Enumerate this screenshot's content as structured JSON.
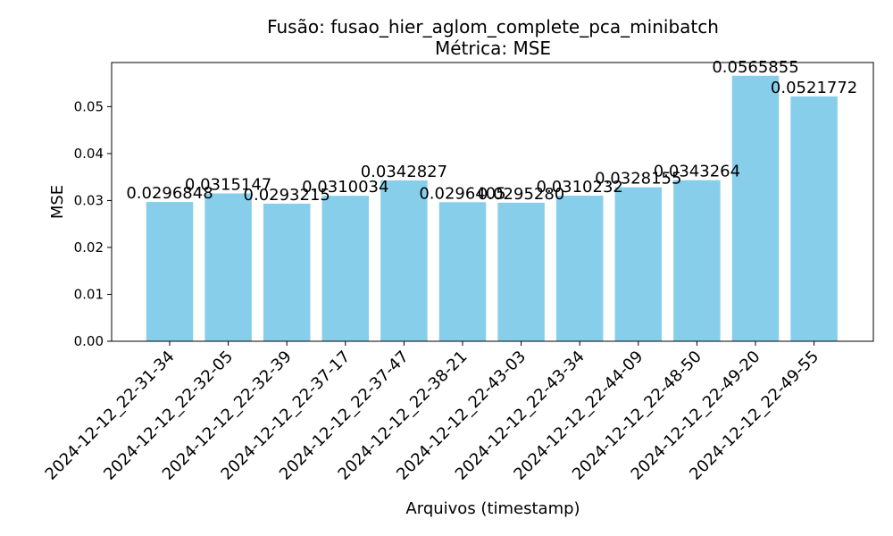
{
  "chart_data": {
    "type": "bar",
    "title_line1": "Fusão: fusao_hier_aglom_complete_pca_minibatch",
    "title_line2": "Métrica: MSE",
    "xlabel": "Arquivos (timestamp)",
    "ylabel": "MSE",
    "categories": [
      "2024-12-12_22-31-34",
      "2024-12-12_22-32-05",
      "2024-12-12_22-32-39",
      "2024-12-12_22-37-17",
      "2024-12-12_22-37-47",
      "2024-12-12_22-38-21",
      "2024-12-12_22-43-03",
      "2024-12-12_22-43-34",
      "2024-12-12_22-44-09",
      "2024-12-12_22-48-50",
      "2024-12-12_22-49-20",
      "2024-12-12_22-49-55"
    ],
    "values": [
      0.0296848,
      0.0315147,
      0.0293215,
      0.0310034,
      0.0342827,
      0.0296405,
      0.029528,
      0.0310232,
      0.0328155,
      0.0343264,
      0.0565855,
      0.0521772
    ],
    "value_labels": [
      "0.0296848",
      "0.0315147",
      "0.0293215",
      "0.0310034",
      "0.0342827",
      "0.0296405",
      "0.0295280",
      "0.0310232",
      "0.0328155",
      "0.0343264",
      "0.0565855",
      "0.0521772"
    ],
    "yticks": [
      0.0,
      0.01,
      0.02,
      0.03,
      0.04,
      0.05
    ],
    "ytick_labels": [
      "0.00",
      "0.01",
      "0.02",
      "0.03",
      "0.04",
      "0.05"
    ],
    "ylim": [
      0,
      0.0594
    ],
    "bar_color": "#87ceeb",
    "grid": false,
    "legend": "none"
  }
}
